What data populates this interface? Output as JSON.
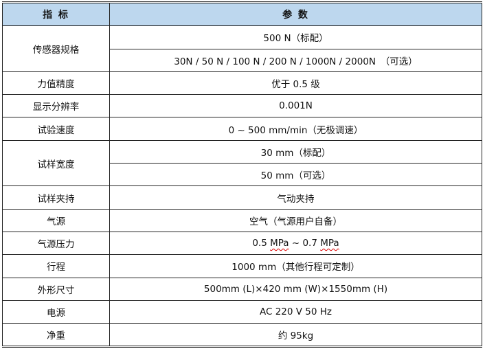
{
  "header": {
    "indicator": "指 标",
    "parameter": "参 数"
  },
  "rows": [
    {
      "label": "传感器规格",
      "values": [
        "500 N（标配）",
        "30N / 50 N / 100 N / 200 N / 1000N / 2000N　（可选）"
      ]
    },
    {
      "label": "力值精度",
      "values": [
        "优于 0.5 级"
      ]
    },
    {
      "label": "显示分辨率",
      "values": [
        "0.001N"
      ]
    },
    {
      "label": "试验速度",
      "values": [
        "0 ~ 500 mm/min（无极调速）"
      ]
    },
    {
      "label": "试样宽度",
      "values": [
        "30 mm（标配）",
        "50 mm（可选）"
      ]
    },
    {
      "label": "试样夹持",
      "values": [
        "气动夹持"
      ]
    },
    {
      "label": "气源",
      "values": [
        "空气（气源用户自备）"
      ]
    },
    {
      "label": "气源压力",
      "values": [
        "0.5 MPa ~ 0.7 MPa"
      ],
      "parts": [
        "0.5 ",
        "MPa",
        " ~ 0.7 ",
        "MPa"
      ]
    },
    {
      "label": "行程",
      "values": [
        "1000 mm（其他行程可定制）"
      ]
    },
    {
      "label": "外形尺寸",
      "values": [
        "500mm (L)×420 mm (W)×1550mm (H)"
      ]
    },
    {
      "label": "电源",
      "values": [
        "AC 220 V 50 Hz"
      ]
    },
    {
      "label": "净重",
      "values": [
        "约 95kg"
      ]
    }
  ],
  "colors": {
    "header_bg": "#bdd7ee",
    "border": "#222222",
    "spellcheck_underline": "#dd0000"
  }
}
